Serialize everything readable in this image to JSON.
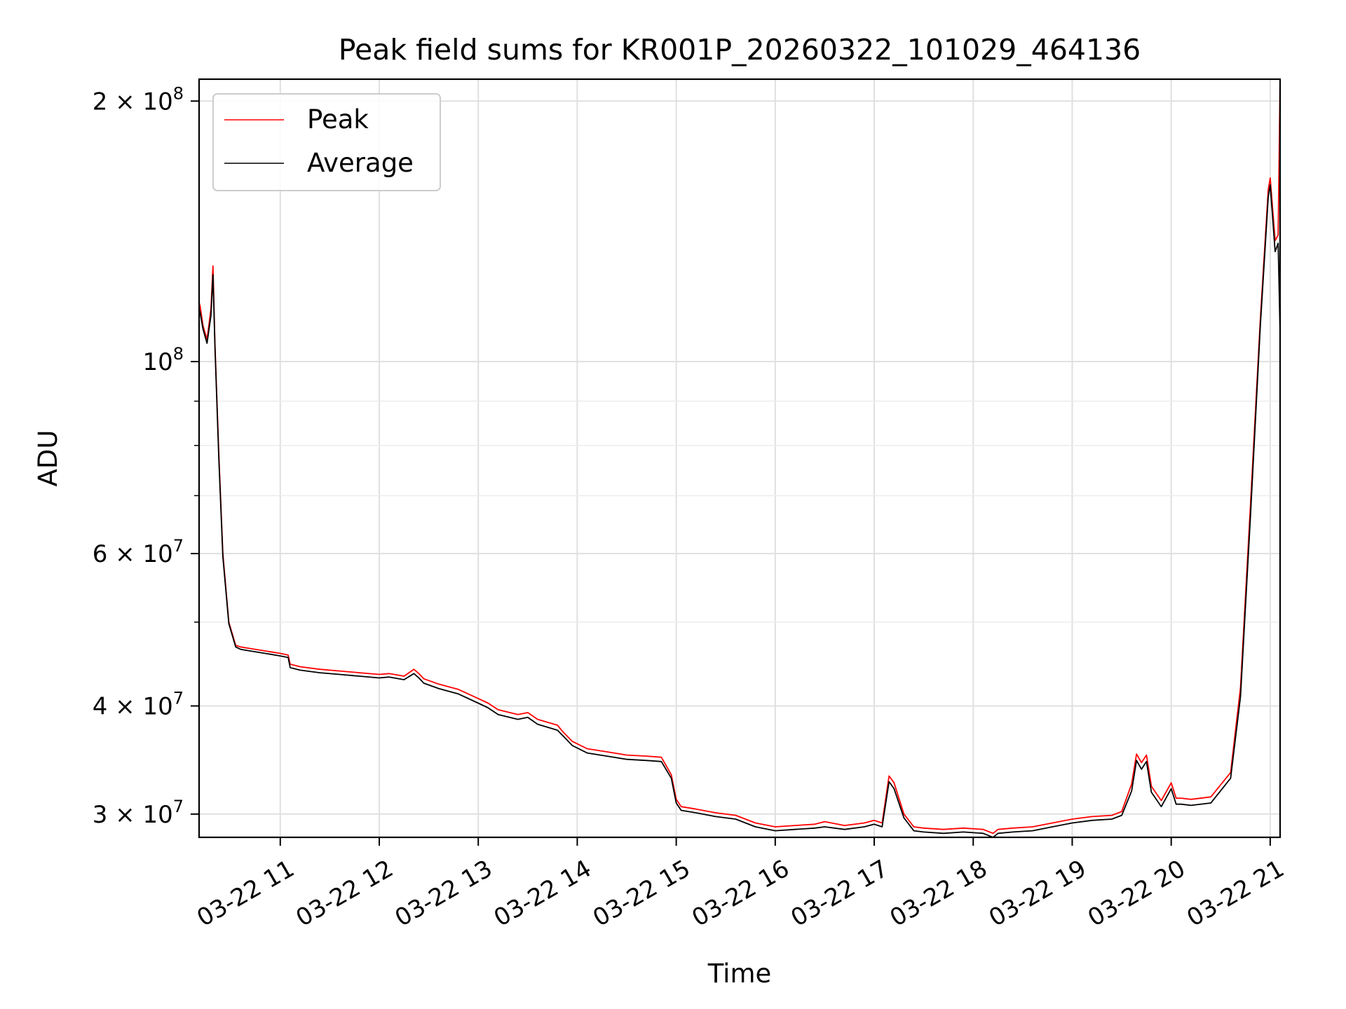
{
  "chart_data": {
    "type": "line",
    "title": "Peak field sums for KR001P_20260322_101029_464136",
    "xlabel": "Time",
    "ylabel": "ADU",
    "yscale": "log",
    "xlim": [
      10.18,
      21.1
    ],
    "ylim": [
      28200000,
      212000000
    ],
    "grid": true,
    "legend_position": "upper left",
    "x_ticks": [
      {
        "value": 11,
        "label": "03-22 11"
      },
      {
        "value": 12,
        "label": "03-22 12"
      },
      {
        "value": 13,
        "label": "03-22 13"
      },
      {
        "value": 14,
        "label": "03-22 14"
      },
      {
        "value": 15,
        "label": "03-22 15"
      },
      {
        "value": 16,
        "label": "03-22 16"
      },
      {
        "value": 17,
        "label": "03-22 17"
      },
      {
        "value": 18,
        "label": "03-22 18"
      },
      {
        "value": 19,
        "label": "03-22 19"
      },
      {
        "value": 20,
        "label": "03-22 20"
      },
      {
        "value": 21,
        "label": "03-22 21"
      }
    ],
    "y_major_ticks": [
      {
        "value": 30000000,
        "mantissa": "3",
        "exponent": "7"
      },
      {
        "value": 40000000,
        "mantissa": "4",
        "exponent": "7"
      },
      {
        "value": 60000000,
        "mantissa": "6",
        "exponent": "7"
      },
      {
        "value": 100000000,
        "mantissa": "",
        "exponent": "8"
      },
      {
        "value": 200000000,
        "mantissa": "2",
        "exponent": "8"
      }
    ],
    "y_minor_ticks": [
      50000000,
      70000000,
      80000000,
      90000000
    ],
    "series": [
      {
        "name": "Peak",
        "color": "#ff0000",
        "x": [
          10.18,
          10.19,
          10.22,
          10.26,
          10.3,
          10.32,
          10.34,
          10.38,
          10.42,
          10.48,
          10.55,
          10.6,
          10.7,
          10.8,
          10.9,
          11.0,
          11.08,
          11.1,
          11.2,
          11.4,
          11.6,
          11.8,
          12.0,
          12.1,
          12.25,
          12.35,
          12.4,
          12.45,
          12.6,
          12.8,
          13.0,
          13.1,
          13.2,
          13.4,
          13.5,
          13.6,
          13.8,
          13.85,
          13.95,
          14.1,
          14.3,
          14.5,
          14.7,
          14.85,
          14.95,
          15.0,
          15.05,
          15.2,
          15.4,
          15.6,
          15.8,
          16.0,
          16.2,
          16.4,
          16.5,
          16.7,
          16.9,
          17.0,
          17.08,
          17.15,
          17.2,
          17.3,
          17.4,
          17.5,
          17.7,
          17.9,
          18.1,
          18.2,
          18.25,
          18.4,
          18.6,
          18.8,
          19.0,
          19.2,
          19.4,
          19.5,
          19.6,
          19.65,
          19.7,
          19.75,
          19.8,
          19.9,
          20.0,
          20.05,
          20.1,
          20.2,
          20.4,
          20.6,
          20.7,
          20.8,
          20.9,
          20.98,
          21.0,
          21.05,
          21.08,
          21.1
        ],
        "y": [
          117000000,
          116000000,
          110000000,
          106000000,
          115000000,
          129000000,
          105000000,
          78000000,
          60000000,
          50000000,
          47000000,
          46800000,
          46600000,
          46400000,
          46200000,
          46000000,
          45800000,
          44700000,
          44400000,
          44100000,
          43900000,
          43700000,
          43500000,
          43600000,
          43300000,
          44100000,
          43600000,
          43000000,
          42400000,
          41800000,
          40800000,
          40300000,
          39600000,
          39100000,
          39300000,
          38600000,
          38000000,
          37400000,
          36400000,
          35700000,
          35400000,
          35100000,
          35000000,
          34900000,
          33300000,
          31200000,
          30600000,
          30400000,
          30100000,
          29900000,
          29300000,
          29000000,
          29100000,
          29200000,
          29400000,
          29100000,
          29300000,
          29500000,
          29300000,
          33200000,
          32600000,
          30000000,
          29000000,
          28900000,
          28800000,
          28900000,
          28800000,
          28500000,
          28800000,
          28900000,
          29000000,
          29300000,
          29600000,
          29800000,
          29900000,
          30200000,
          32500000,
          35200000,
          34400000,
          35100000,
          32300000,
          31100000,
          32600000,
          31300000,
          31300000,
          31200000,
          31400000,
          33500000,
          42000000,
          68000000,
          112000000,
          158000000,
          163000000,
          138000000,
          140000000,
          212000000
        ]
      },
      {
        "name": "Average",
        "color": "#000000",
        "x": [
          10.18,
          10.19,
          10.22,
          10.26,
          10.3,
          10.32,
          10.34,
          10.38,
          10.42,
          10.48,
          10.55,
          10.6,
          10.7,
          10.8,
          10.9,
          11.0,
          11.08,
          11.1,
          11.2,
          11.4,
          11.6,
          11.8,
          12.0,
          12.1,
          12.25,
          12.35,
          12.4,
          12.45,
          12.6,
          12.8,
          13.0,
          13.1,
          13.2,
          13.4,
          13.5,
          13.6,
          13.8,
          13.85,
          13.95,
          14.1,
          14.3,
          14.5,
          14.7,
          14.85,
          14.95,
          15.0,
          15.05,
          15.2,
          15.4,
          15.6,
          15.8,
          16.0,
          16.2,
          16.4,
          16.5,
          16.7,
          16.9,
          17.0,
          17.08,
          17.15,
          17.2,
          17.3,
          17.4,
          17.5,
          17.7,
          17.9,
          18.1,
          18.2,
          18.25,
          18.4,
          18.6,
          18.8,
          19.0,
          19.2,
          19.4,
          19.5,
          19.6,
          19.65,
          19.7,
          19.75,
          19.8,
          19.9,
          20.0,
          20.05,
          20.1,
          20.2,
          20.4,
          20.6,
          20.7,
          20.8,
          20.9,
          20.98,
          21.0,
          21.05,
          21.08,
          21.1
        ],
        "y": [
          115000000,
          114000000,
          109000000,
          105000000,
          113000000,
          126000000,
          104000000,
          77000000,
          59500000,
          49800000,
          46800000,
          46500000,
          46300000,
          46100000,
          45900000,
          45700000,
          45500000,
          44300000,
          44000000,
          43700000,
          43500000,
          43300000,
          43100000,
          43200000,
          42900000,
          43600000,
          43100000,
          42500000,
          41900000,
          41300000,
          40300000,
          39800000,
          39100000,
          38600000,
          38800000,
          38100000,
          37500000,
          37000000,
          36000000,
          35300000,
          35000000,
          34700000,
          34600000,
          34500000,
          33000000,
          30900000,
          30300000,
          30100000,
          29800000,
          29600000,
          29000000,
          28700000,
          28800000,
          28900000,
          29000000,
          28800000,
          29000000,
          29200000,
          29000000,
          32700000,
          32100000,
          29700000,
          28700000,
          28600000,
          28500000,
          28600000,
          28500000,
          28200000,
          28500000,
          28600000,
          28700000,
          29000000,
          29300000,
          29500000,
          29600000,
          29900000,
          31900000,
          34600000,
          33800000,
          34500000,
          31800000,
          30600000,
          32100000,
          30800000,
          30800000,
          30700000,
          30900000,
          33000000,
          41000000,
          66000000,
          110000000,
          155000000,
          160000000,
          134000000,
          137000000,
          108000000
        ]
      }
    ]
  }
}
